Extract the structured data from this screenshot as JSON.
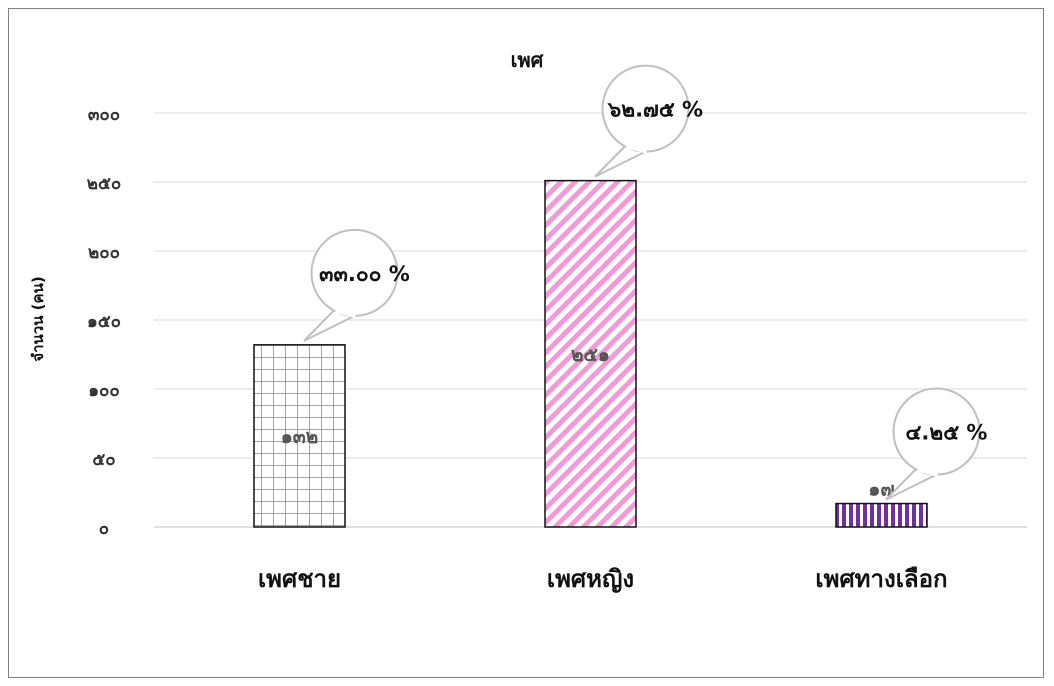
{
  "chart_data": {
    "type": "bar",
    "title": "เพศ",
    "ylabel": "จำนวน (คน)",
    "xlabel": "",
    "ylim": [
      0,
      300
    ],
    "yticks": [
      0,
      50,
      100,
      150,
      200,
      250,
      300
    ],
    "ytick_labels": [
      "๐",
      "๕๐",
      "๑๐๐",
      "๑๕๐",
      "๒๐๐",
      "๒๕๐",
      "๓๐๐"
    ],
    "categories": [
      "เพศชาย",
      "เพศหญิง",
      "เพศทางเลือก"
    ],
    "values": [
      132,
      251,
      17
    ],
    "value_labels": [
      "๑๓๒",
      "๒๕๑",
      "๑๗"
    ],
    "percent_labels": [
      "๓๓.๐๐ %",
      "๖๒.๗๕ %",
      "๔.๒๕ %"
    ],
    "bar_patterns": [
      "grid",
      "diagonal-stripes",
      "vertical-stripes"
    ],
    "bar_colors": [
      "#29a3e0",
      "#f29ad8",
      "#7030a0"
    ],
    "grid": true,
    "legend": "none"
  }
}
